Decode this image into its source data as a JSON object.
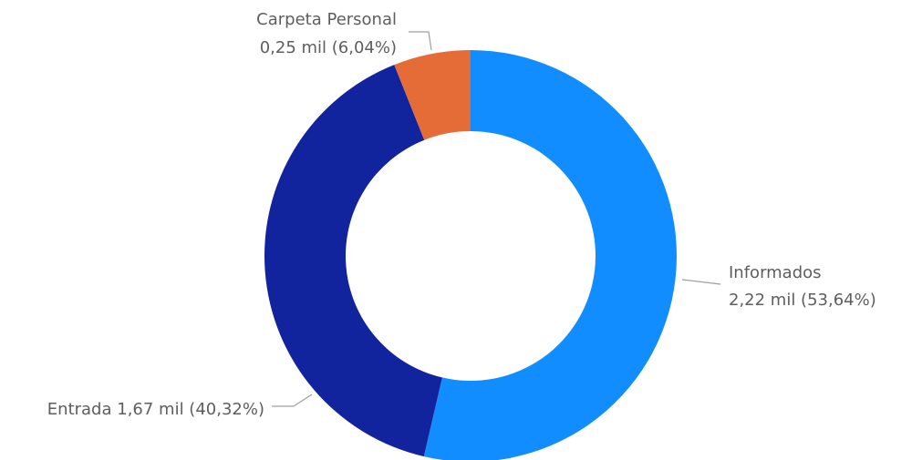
{
  "chart_data": {
    "type": "pie",
    "donut": true,
    "title": "",
    "slices": [
      {
        "name": "Informados",
        "value_label": "2,22 mil (53,64%)",
        "value": 2.22,
        "percent": 53.64,
        "color": "#118DFF"
      },
      {
        "name": "Entrada",
        "value_label": "1,67 mil (40,32%)",
        "value": 1.67,
        "percent": 40.32,
        "color": "#12239E"
      },
      {
        "name": "Carpeta Personal",
        "value_label": "0,25 mil (6,04%)",
        "value": 0.25,
        "percent": 6.04,
        "color": "#E66C37"
      }
    ],
    "unit": "mil",
    "legend": "none"
  }
}
